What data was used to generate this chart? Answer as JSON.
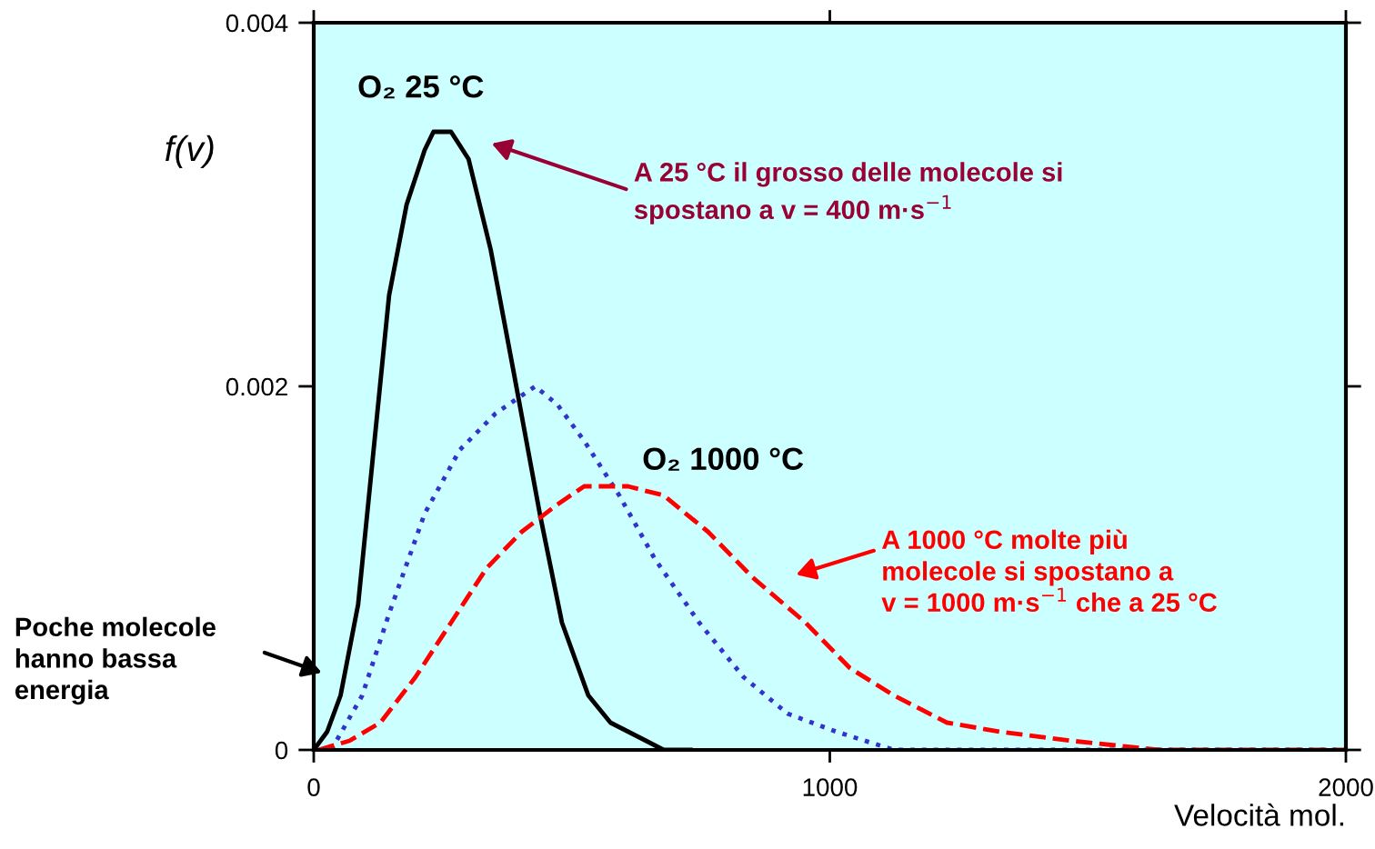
{
  "chart_data": {
    "type": "line",
    "xlabel": "Velocità mol.",
    "ylabel": "f(v)",
    "xlim": [
      0,
      2000
    ],
    "ylim": [
      0,
      0.004
    ],
    "xticks": [
      0,
      1000,
      2000
    ],
    "yticks": [
      0,
      0.002,
      0.004
    ],
    "grid": false,
    "legend": false,
    "marker": "none",
    "series": [
      {
        "name": "O₂ 25 °C",
        "color": "#000000",
        "line_style": "solid",
        "x": [
          0,
          26,
          52,
          86,
          146,
          180,
          215,
          232,
          266,
          300,
          343,
          386,
          438,
          481,
          532,
          575,
          644,
          678,
          730
        ],
        "values": [
          0,
          0.0001,
          0.0003,
          0.0008,
          0.0025,
          0.003,
          0.0033,
          0.0034,
          0.0034,
          0.00325,
          0.00275,
          0.0021,
          0.0013,
          0.0007,
          0.0003,
          0.00015,
          5e-05,
          0,
          0
        ]
      },
      {
        "color": "#3333cc",
        "line_style": "dotted",
        "x": [
          34,
          94,
          146,
          215,
          283,
          352,
          429,
          472,
          524,
          592,
          661,
          747,
          833,
          918,
          1013,
          1124,
          1296,
          2000
        ],
        "values": [
          0,
          0.0003,
          0.00075,
          0.0013,
          0.00165,
          0.00185,
          0.002,
          0.0019,
          0.0017,
          0.0014,
          0.00105,
          0.0007,
          0.0004,
          0.0002,
          0.0001,
          0,
          0,
          0
        ]
      },
      {
        "name": "O₂ 1000 °C",
        "color": "#ff0000",
        "line_style": "dashed",
        "x": [
          9,
          69,
          129,
          197,
          266,
          335,
          403,
          472,
          524,
          609,
          678,
          764,
          850,
          953,
          1039,
          1124,
          1227,
          1330,
          1468,
          1639,
          2000
        ],
        "values": [
          0,
          5e-05,
          0.00015,
          0.0004,
          0.0007,
          0.001,
          0.0012,
          0.00135,
          0.00145,
          0.00145,
          0.0014,
          0.0012,
          0.00095,
          0.0007,
          0.00045,
          0.0003,
          0.00015,
          0.0001,
          5e-05,
          0,
          0
        ]
      }
    ],
    "annotations": [
      "A 25 °C il grosso delle molecole si\nspostano a v = 400 m·s$^{−1}$",
      "A 1000 °C molte più\nmolecole si spostano a\nv = 1000 m·s$^{−1}$ che a 25 °C",
      "Poche molecole\nhanno bassa\nenergia"
    ]
  }
}
